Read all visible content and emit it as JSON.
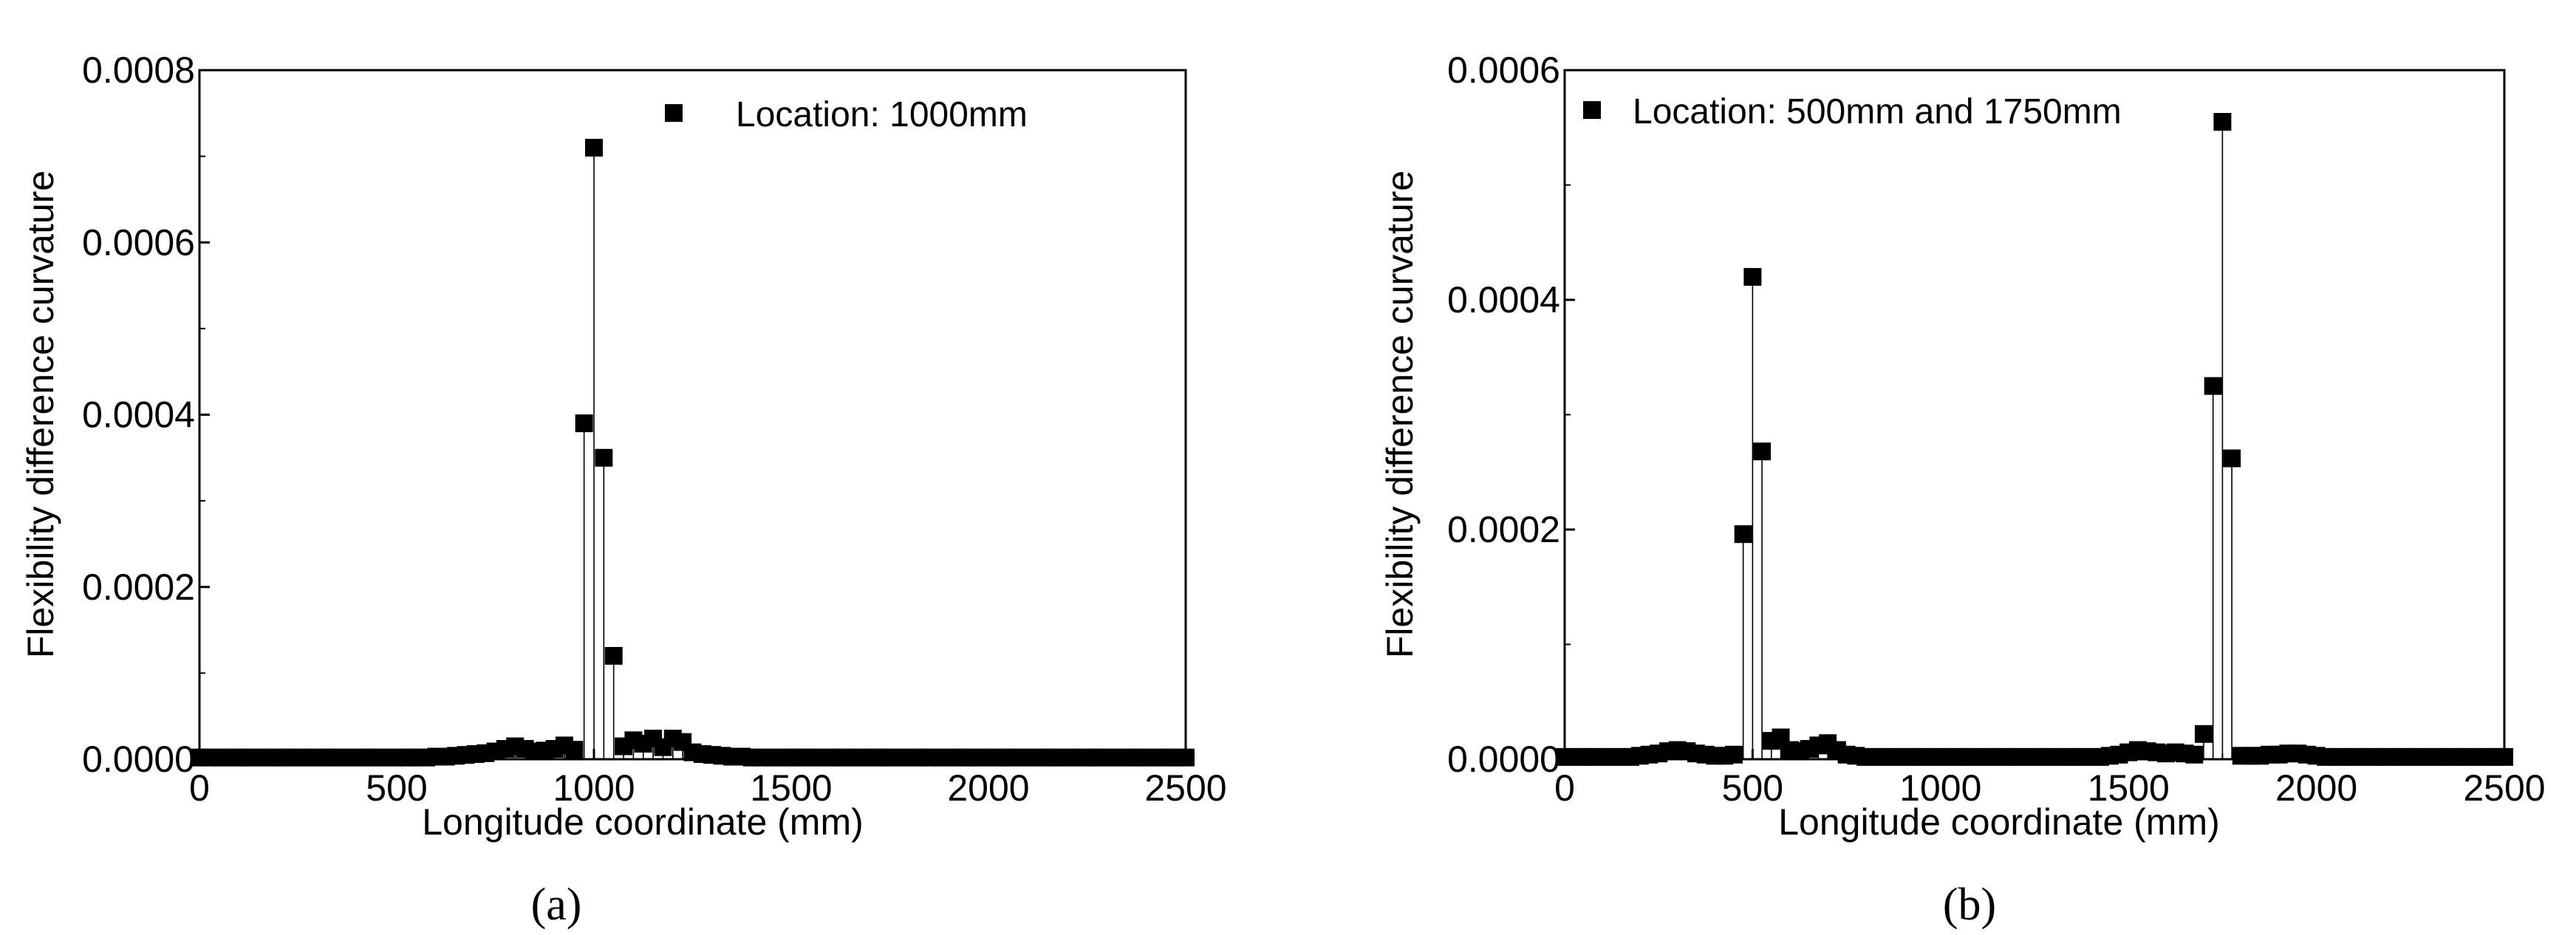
{
  "chart_data": [
    {
      "type": "scatter",
      "panel_label": "(a)",
      "xlabel": "Longitude coordinate (mm)",
      "ylabel": "Flexibility difference curvature",
      "xlim": [
        0,
        2500
      ],
      "ylim": [
        0,
        0.0008
      ],
      "xticks": [
        "0",
        "500",
        "1000",
        "1500",
        "2000",
        "2500"
      ],
      "yticks": [
        "0.0000",
        "0.0002",
        "0.0004",
        "0.0006",
        "0.0008"
      ],
      "grid": false,
      "legend_position": "top-right",
      "series": [
        {
          "name": "Location: 1000mm",
          "x": [
            0,
            25,
            50,
            75,
            100,
            125,
            150,
            175,
            200,
            225,
            250,
            275,
            300,
            325,
            350,
            375,
            400,
            425,
            450,
            475,
            500,
            525,
            550,
            575,
            600,
            625,
            650,
            675,
            700,
            725,
            750,
            775,
            800,
            825,
            850,
            875,
            900,
            925,
            950,
            975,
            1000,
            1025,
            1050,
            1075,
            1100,
            1125,
            1150,
            1175,
            1200,
            1225,
            1250,
            1275,
            1300,
            1325,
            1350,
            1375,
            1400,
            1425,
            1450,
            1475,
            1500,
            1525,
            1550,
            1575,
            1600,
            1625,
            1650,
            1675,
            1700,
            1725,
            1750,
            1775,
            1800,
            1825,
            1850,
            1875,
            1900,
            1925,
            1950,
            1975,
            2000,
            2025,
            2050,
            2075,
            2100,
            2125,
            2150,
            2175,
            2200,
            2225,
            2250,
            2275,
            2300,
            2325,
            2350,
            2375,
            2400,
            2425,
            2450,
            2475,
            2500
          ],
          "y": [
            2e-06,
            2e-06,
            2e-06,
            2e-06,
            2e-06,
            2e-06,
            2e-06,
            2e-06,
            2e-06,
            2e-06,
            2e-06,
            2e-06,
            2e-06,
            2e-06,
            2e-06,
            2e-06,
            2e-06,
            2e-06,
            2e-06,
            2e-06,
            2e-06,
            2e-06,
            2e-06,
            2e-06,
            3e-06,
            3e-06,
            4e-06,
            5e-06,
            6e-06,
            7e-06,
            9e-06,
            1.2e-05,
            1.5e-05,
            1.2e-05,
            9e-06,
            1e-05,
            1.2e-05,
            1.6e-05,
            1.1e-05,
            0.00039,
            0.00071,
            0.00035,
            0.00012,
            1.5e-05,
            2.2e-05,
            1.8e-05,
            2.4e-05,
            1.4e-05,
            2.4e-05,
            2e-05,
            8e-06,
            6e-06,
            5e-06,
            4e-06,
            3e-06,
            3e-06,
            2e-06,
            2e-06,
            2e-06,
            2e-06,
            2e-06,
            2e-06,
            2e-06,
            2e-06,
            2e-06,
            2e-06,
            2e-06,
            2e-06,
            2e-06,
            2e-06,
            2e-06,
            2e-06,
            2e-06,
            2e-06,
            2e-06,
            2e-06,
            2e-06,
            2e-06,
            2e-06,
            2e-06,
            2e-06,
            2e-06,
            2e-06,
            2e-06,
            2e-06,
            2e-06,
            2e-06,
            2e-06,
            2e-06,
            2e-06,
            2e-06,
            2e-06,
            2e-06,
            2e-06,
            2e-06,
            2e-06,
            2e-06,
            2e-06,
            2e-06,
            2e-06,
            2e-06
          ]
        }
      ]
    },
    {
      "type": "scatter",
      "panel_label": "(b)",
      "xlabel": "Longitude coordinate (mm)",
      "ylabel": "Flexibility difference curvature",
      "xlim": [
        0,
        2500
      ],
      "ylim": [
        0,
        0.0006
      ],
      "xticks": [
        "0",
        "500",
        "1000",
        "1500",
        "2000",
        "2500"
      ],
      "yticks": [
        "0.0000",
        "0.0002",
        "0.0004",
        "0.0006"
      ],
      "grid": false,
      "legend_position": "top-left",
      "series": [
        {
          "name": "Location: 500mm and 1750mm",
          "x": [
            0,
            25,
            50,
            75,
            100,
            125,
            150,
            175,
            200,
            225,
            250,
            275,
            300,
            325,
            350,
            375,
            400,
            425,
            450,
            475,
            500,
            525,
            550,
            575,
            600,
            625,
            650,
            675,
            700,
            725,
            750,
            775,
            800,
            825,
            850,
            875,
            900,
            925,
            950,
            975,
            1000,
            1025,
            1050,
            1075,
            1100,
            1125,
            1150,
            1175,
            1200,
            1225,
            1250,
            1275,
            1300,
            1325,
            1350,
            1375,
            1400,
            1425,
            1450,
            1475,
            1500,
            1525,
            1550,
            1575,
            1600,
            1625,
            1650,
            1675,
            1700,
            1725,
            1750,
            1775,
            1800,
            1825,
            1850,
            1875,
            1900,
            1925,
            1950,
            1975,
            2000,
            2025,
            2050,
            2075,
            2100,
            2125,
            2150,
            2175,
            2200,
            2225,
            2250,
            2275,
            2300,
            2325,
            2350,
            2375,
            2400,
            2425,
            2450,
            2475,
            2500
          ],
          "y": [
            2e-06,
            2e-06,
            2e-06,
            2e-06,
            2e-06,
            2e-06,
            2e-06,
            2e-06,
            3e-06,
            4e-06,
            5e-06,
            7e-06,
            8e-06,
            7e-06,
            5e-06,
            4e-06,
            3e-06,
            3e-06,
            4e-06,
            0.000196,
            0.00042,
            0.000268,
            1.6e-05,
            1.9e-05,
            8e-06,
            7e-06,
            9e-06,
            1.2e-05,
            1.4e-05,
            8e-06,
            4e-06,
            3e-06,
            2e-06,
            2e-06,
            2e-06,
            2e-06,
            2e-06,
            2e-06,
            2e-06,
            2e-06,
            2e-06,
            2e-06,
            2e-06,
            2e-06,
            2e-06,
            2e-06,
            2e-06,
            2e-06,
            2e-06,
            2e-06,
            2e-06,
            2e-06,
            2e-06,
            2e-06,
            2e-06,
            2e-06,
            2e-06,
            2e-06,
            3e-06,
            4e-06,
            6e-06,
            8e-06,
            7e-06,
            6e-06,
            5e-06,
            6e-06,
            5e-06,
            4e-06,
            2.2e-05,
            0.000325,
            0.000555,
            0.000262,
            3e-06,
            3e-06,
            3e-06,
            4e-06,
            4e-06,
            5e-06,
            5e-06,
            4e-06,
            3e-06,
            2e-06,
            2e-06,
            2e-06,
            2e-06,
            2e-06,
            2e-06,
            2e-06,
            2e-06,
            2e-06,
            2e-06,
            2e-06,
            2e-06,
            2e-06,
            2e-06,
            2e-06,
            2e-06,
            2e-06,
            2e-06,
            2e-06,
            2e-06
          ]
        }
      ]
    }
  ]
}
